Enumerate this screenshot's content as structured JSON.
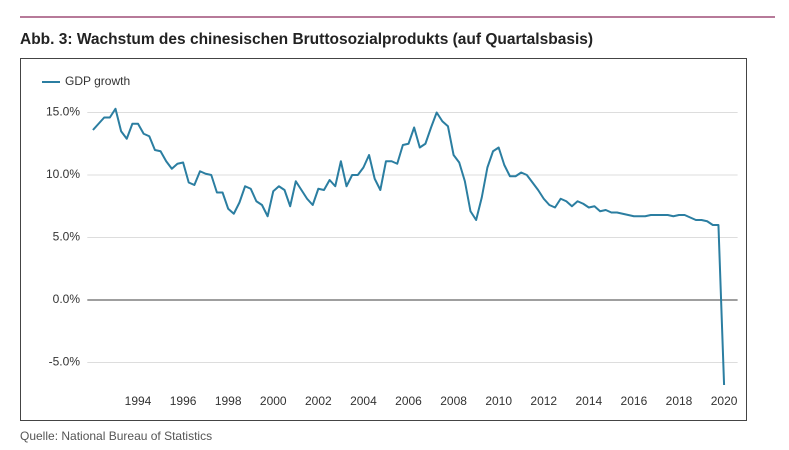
{
  "chart_data": {
    "type": "line",
    "title": "Abb. 3: Wachstum des chinesischen Bruttosozialprodukts (auf Quartalsbasis)",
    "source": "Quelle: National Bureau of Statistics",
    "x": [
      1992,
      1992.25,
      1992.5,
      1992.75,
      1993,
      1993.25,
      1993.5,
      1993.75,
      1994,
      1994.25,
      1994.5,
      1994.75,
      1995,
      1995.25,
      1995.5,
      1995.75,
      1996,
      1996.25,
      1996.5,
      1996.75,
      1997,
      1997.25,
      1997.5,
      1997.75,
      1998,
      1998.25,
      1998.5,
      1998.75,
      1999,
      1999.25,
      1999.5,
      1999.75,
      2000,
      2000.25,
      2000.5,
      2000.75,
      2001,
      2001.25,
      2001.5,
      2001.75,
      2002,
      2002.25,
      2002.5,
      2002.75,
      2003,
      2003.25,
      2003.5,
      2003.75,
      2004,
      2004.25,
      2004.5,
      2004.75,
      2005,
      2005.25,
      2005.5,
      2005.75,
      2006,
      2006.25,
      2006.5,
      2006.75,
      2007,
      2007.25,
      2007.5,
      2007.75,
      2008,
      2008.25,
      2008.5,
      2008.75,
      2009,
      2009.25,
      2009.5,
      2009.75,
      2010,
      2010.25,
      2010.5,
      2010.75,
      2011,
      2011.25,
      2011.5,
      2011.75,
      2012,
      2012.25,
      2012.5,
      2012.75,
      2013,
      2013.25,
      2013.5,
      2013.75,
      2014,
      2014.25,
      2014.5,
      2014.75,
      2015,
      2015.25,
      2015.5,
      2015.75,
      2016,
      2016.25,
      2016.5,
      2016.75,
      2017,
      2017.25,
      2017.5,
      2017.75,
      2018,
      2018.25,
      2018.5,
      2018.75,
      2019,
      2019.25,
      2019.5,
      2019.75,
      2020
    ],
    "series": [
      {
        "name": "GDP growth",
        "color": "#2b7ea1",
        "values": [
          13.6,
          14.1,
          14.6,
          14.6,
          15.3,
          13.5,
          12.9,
          14.1,
          14.1,
          13.3,
          13.1,
          12.0,
          11.9,
          11.1,
          10.5,
          10.9,
          11.0,
          9.4,
          9.2,
          10.3,
          10.1,
          10.0,
          8.6,
          8.6,
          7.3,
          6.9,
          7.8,
          9.1,
          8.9,
          7.9,
          7.6,
          6.7,
          8.7,
          9.1,
          8.8,
          7.5,
          9.5,
          8.8,
          8.1,
          7.6,
          8.9,
          8.8,
          9.6,
          9.1,
          11.1,
          9.1,
          10.0,
          10.0,
          10.6,
          11.6,
          9.7,
          8.8,
          11.1,
          11.1,
          10.9,
          12.4,
          12.5,
          13.8,
          12.2,
          12.5,
          13.8,
          15.0,
          14.3,
          13.9,
          11.6,
          11.0,
          9.5,
          7.1,
          6.4,
          8.2,
          10.6,
          11.9,
          12.2,
          10.8,
          9.9,
          9.9,
          10.2,
          10.0,
          9.4,
          8.8,
          8.1,
          7.6,
          7.4,
          8.1,
          7.9,
          7.5,
          7.9,
          7.7,
          7.4,
          7.5,
          7.1,
          7.2,
          7.0,
          7.0,
          6.9,
          6.8,
          6.7,
          6.7,
          6.7,
          6.8,
          6.8,
          6.8,
          6.8,
          6.7,
          6.8,
          6.8,
          6.6,
          6.4,
          6.4,
          6.3,
          6.0,
          6.0,
          -6.8
        ]
      }
    ],
    "xlim": [
      1991.75,
      2020.6
    ],
    "xticks": [
      1994,
      1996,
      1998,
      2000,
      2002,
      2004,
      2006,
      2008,
      2010,
      2012,
      2014,
      2016,
      2018,
      2020
    ],
    "ylim": [
      -7.5,
      16
    ],
    "yticks": [
      {
        "value": 15,
        "label": "15.0%"
      },
      {
        "value": 10,
        "label": "10.0%"
      },
      {
        "value": 5,
        "label": "5.0%"
      },
      {
        "value": 0,
        "label": "0.0%"
      },
      {
        "value": -5,
        "label": "-5.0%"
      }
    ],
    "grid": true,
    "legend": "top-left"
  }
}
